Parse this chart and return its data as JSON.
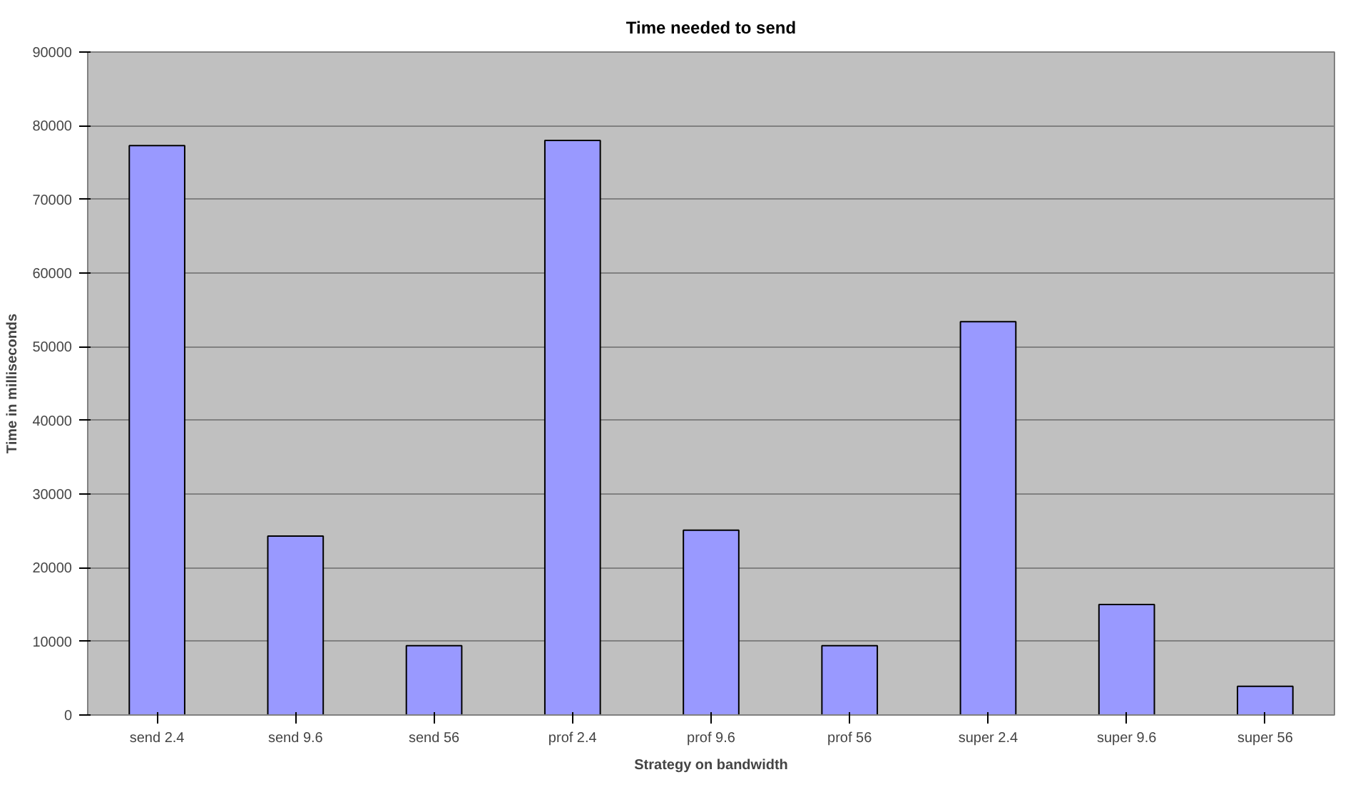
{
  "chart_data": {
    "type": "bar",
    "title": "Time needed to send",
    "xlabel": "Strategy on bandwidth",
    "ylabel": "Time in milliseconds",
    "categories": [
      "send 2.4",
      "send 9.6",
      "send 56",
      "prof 2.4",
      "prof 9.6",
      "prof 56",
      "super 2.4",
      "super 9.6",
      "super 56"
    ],
    "values": [
      77300,
      24300,
      9400,
      78000,
      25100,
      9400,
      53400,
      15000,
      3900
    ],
    "color": "#9999ff",
    "ylim": [
      0,
      90000
    ],
    "yticks": [
      0,
      10000,
      20000,
      30000,
      40000,
      50000,
      60000,
      70000,
      80000,
      90000
    ],
    "grid": "y"
  }
}
